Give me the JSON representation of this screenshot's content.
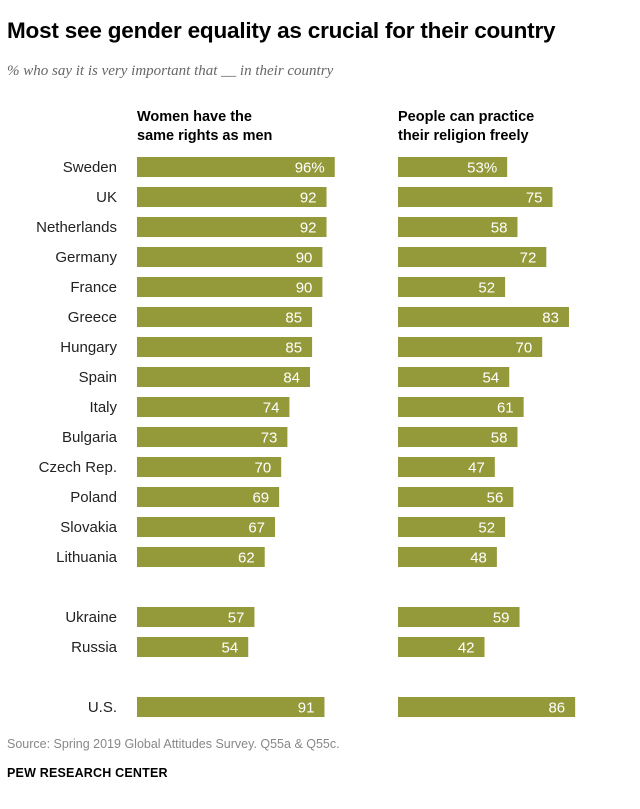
{
  "title": "Most see gender equality as crucial for their country",
  "subtitle": "% who say it is very important that __ in their country",
  "colors": {
    "bar": "#949A3A",
    "bar_label": "#ffffff",
    "text": "#222222"
  },
  "chart_data": {
    "type": "bar",
    "orientation": "horizontal",
    "categories": [
      "Sweden",
      "UK",
      "Netherlands",
      "Germany",
      "France",
      "Greece",
      "Hungary",
      "Spain",
      "Italy",
      "Bulgaria",
      "Czech Rep.",
      "Poland",
      "Slovakia",
      "Lithuania",
      "Ukraine",
      "Russia",
      "U.S."
    ],
    "groups": [
      14,
      2,
      1
    ],
    "series": [
      {
        "name": "Women have the same rights as men",
        "values": [
          96,
          92,
          92,
          90,
          90,
          85,
          85,
          84,
          74,
          73,
          70,
          69,
          67,
          62,
          57,
          54,
          91
        ],
        "labels": [
          "96%",
          "92",
          "92",
          "90",
          "90",
          "85",
          "85",
          "84",
          "74",
          "73",
          "70",
          "69",
          "67",
          "62",
          "57",
          "54",
          "91"
        ]
      },
      {
        "name": "People can practice their religion freely",
        "values": [
          53,
          75,
          58,
          72,
          52,
          83,
          70,
          54,
          61,
          58,
          47,
          56,
          52,
          48,
          59,
          42,
          86
        ],
        "labels": [
          "53%",
          "75",
          "58",
          "72",
          "52",
          "83",
          "70",
          "54",
          "61",
          "58",
          "47",
          "56",
          "52",
          "48",
          "59",
          "42",
          "86"
        ]
      }
    ],
    "xlim": [
      0,
      100
    ]
  },
  "headers": {
    "left": [
      "Women have the",
      "same rights as men"
    ],
    "right": [
      "People can practice",
      "their religion freely"
    ]
  },
  "source": "Source: Spring 2019 Global Attitudes Survey. Q55a & Q55c.",
  "brand": "PEW RESEARCH CENTER"
}
